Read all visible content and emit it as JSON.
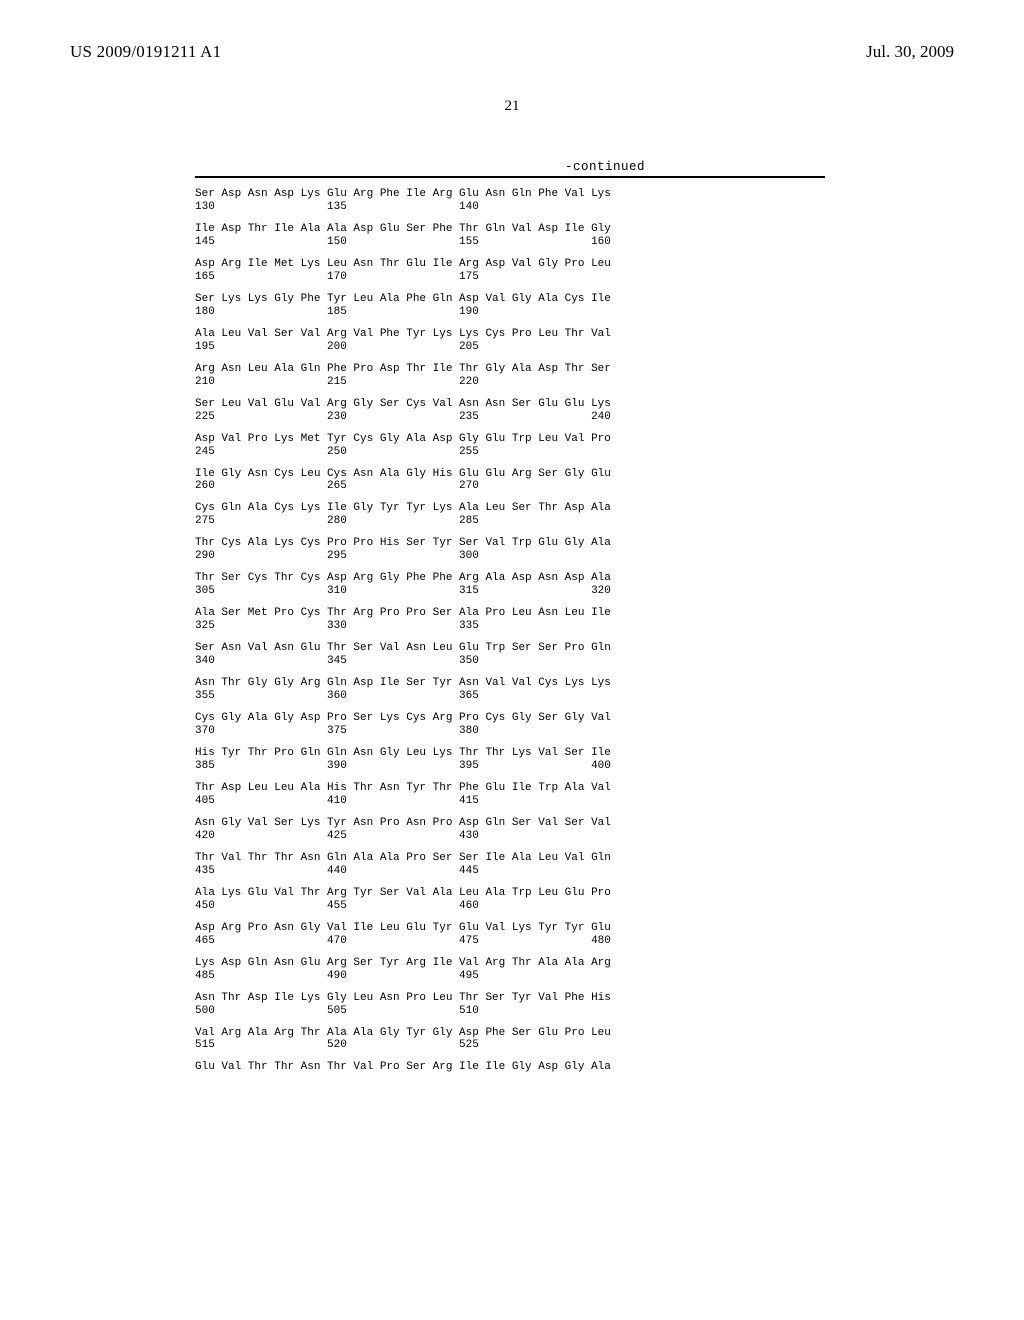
{
  "header": {
    "left": "US 2009/0191211 A1",
    "right": "Jul. 30, 2009"
  },
  "page_number": "21",
  "continued_label": "-continued",
  "sequence": {
    "start": 130,
    "groups": [
      [
        "Ser",
        "Asp",
        "Asn",
        "Asp",
        "Lys",
        "Glu",
        "Arg",
        "Phe",
        "Ile",
        "Arg",
        "Glu",
        "Asn",
        "Gln",
        "Phe",
        "Val",
        "Lys"
      ],
      [
        "Ile",
        "Asp",
        "Thr",
        "Ile",
        "Ala",
        "Ala",
        "Asp",
        "Glu",
        "Ser",
        "Phe",
        "Thr",
        "Gln",
        "Val",
        "Asp",
        "Ile",
        "Gly"
      ],
      [
        "Asp",
        "Arg",
        "Ile",
        "Met",
        "Lys",
        "Leu",
        "Asn",
        "Thr",
        "Glu",
        "Ile",
        "Arg",
        "Asp",
        "Val",
        "Gly",
        "Pro",
        "Leu"
      ],
      [
        "Ser",
        "Lys",
        "Lys",
        "Gly",
        "Phe",
        "Tyr",
        "Leu",
        "Ala",
        "Phe",
        "Gln",
        "Asp",
        "Val",
        "Gly",
        "Ala",
        "Cys",
        "Ile"
      ],
      [
        "Ala",
        "Leu",
        "Val",
        "Ser",
        "Val",
        "Arg",
        "Val",
        "Phe",
        "Tyr",
        "Lys",
        "Lys",
        "Cys",
        "Pro",
        "Leu",
        "Thr",
        "Val"
      ],
      [
        "Arg",
        "Asn",
        "Leu",
        "Ala",
        "Gln",
        "Phe",
        "Pro",
        "Asp",
        "Thr",
        "Ile",
        "Thr",
        "Gly",
        "Ala",
        "Asp",
        "Thr",
        "Ser"
      ],
      [
        "Ser",
        "Leu",
        "Val",
        "Glu",
        "Val",
        "Arg",
        "Gly",
        "Ser",
        "Cys",
        "Val",
        "Asn",
        "Asn",
        "Ser",
        "Glu",
        "Glu",
        "Lys"
      ],
      [
        "Asp",
        "Val",
        "Pro",
        "Lys",
        "Met",
        "Tyr",
        "Cys",
        "Gly",
        "Ala",
        "Asp",
        "Gly",
        "Glu",
        "Trp",
        "Leu",
        "Val",
        "Pro"
      ],
      [
        "Ile",
        "Gly",
        "Asn",
        "Cys",
        "Leu",
        "Cys",
        "Asn",
        "Ala",
        "Gly",
        "His",
        "Glu",
        "Glu",
        "Arg",
        "Ser",
        "Gly",
        "Glu"
      ],
      [
        "Cys",
        "Gln",
        "Ala",
        "Cys",
        "Lys",
        "Ile",
        "Gly",
        "Tyr",
        "Tyr",
        "Lys",
        "Ala",
        "Leu",
        "Ser",
        "Thr",
        "Asp",
        "Ala"
      ],
      [
        "Thr",
        "Cys",
        "Ala",
        "Lys",
        "Cys",
        "Pro",
        "Pro",
        "His",
        "Ser",
        "Tyr",
        "Ser",
        "Val",
        "Trp",
        "Glu",
        "Gly",
        "Ala"
      ],
      [
        "Thr",
        "Ser",
        "Cys",
        "Thr",
        "Cys",
        "Asp",
        "Arg",
        "Gly",
        "Phe",
        "Phe",
        "Arg",
        "Ala",
        "Asp",
        "Asn",
        "Asp",
        "Ala"
      ],
      [
        "Ala",
        "Ser",
        "Met",
        "Pro",
        "Cys",
        "Thr",
        "Arg",
        "Pro",
        "Pro",
        "Ser",
        "Ala",
        "Pro",
        "Leu",
        "Asn",
        "Leu",
        "Ile"
      ],
      [
        "Ser",
        "Asn",
        "Val",
        "Asn",
        "Glu",
        "Thr",
        "Ser",
        "Val",
        "Asn",
        "Leu",
        "Glu",
        "Trp",
        "Ser",
        "Ser",
        "Pro",
        "Gln"
      ],
      [
        "Asn",
        "Thr",
        "Gly",
        "Gly",
        "Arg",
        "Gln",
        "Asp",
        "Ile",
        "Ser",
        "Tyr",
        "Asn",
        "Val",
        "Val",
        "Cys",
        "Lys",
        "Lys"
      ],
      [
        "Cys",
        "Gly",
        "Ala",
        "Gly",
        "Asp",
        "Pro",
        "Ser",
        "Lys",
        "Cys",
        "Arg",
        "Pro",
        "Cys",
        "Gly",
        "Ser",
        "Gly",
        "Val"
      ],
      [
        "His",
        "Tyr",
        "Thr",
        "Pro",
        "Gln",
        "Gln",
        "Asn",
        "Gly",
        "Leu",
        "Lys",
        "Thr",
        "Thr",
        "Lys",
        "Val",
        "Ser",
        "Ile"
      ],
      [
        "Thr",
        "Asp",
        "Leu",
        "Leu",
        "Ala",
        "His",
        "Thr",
        "Asn",
        "Tyr",
        "Thr",
        "Phe",
        "Glu",
        "Ile",
        "Trp",
        "Ala",
        "Val"
      ],
      [
        "Asn",
        "Gly",
        "Val",
        "Ser",
        "Lys",
        "Tyr",
        "Asn",
        "Pro",
        "Asn",
        "Pro",
        "Asp",
        "Gln",
        "Ser",
        "Val",
        "Ser",
        "Val"
      ],
      [
        "Thr",
        "Val",
        "Thr",
        "Thr",
        "Asn",
        "Gln",
        "Ala",
        "Ala",
        "Pro",
        "Ser",
        "Ser",
        "Ile",
        "Ala",
        "Leu",
        "Val",
        "Gln"
      ],
      [
        "Ala",
        "Lys",
        "Glu",
        "Val",
        "Thr",
        "Arg",
        "Tyr",
        "Ser",
        "Val",
        "Ala",
        "Leu",
        "Ala",
        "Trp",
        "Leu",
        "Glu",
        "Pro"
      ],
      [
        "Asp",
        "Arg",
        "Pro",
        "Asn",
        "Gly",
        "Val",
        "Ile",
        "Leu",
        "Glu",
        "Tyr",
        "Glu",
        "Val",
        "Lys",
        "Tyr",
        "Tyr",
        "Glu"
      ],
      [
        "Lys",
        "Asp",
        "Gln",
        "Asn",
        "Glu",
        "Arg",
        "Ser",
        "Tyr",
        "Arg",
        "Ile",
        "Val",
        "Arg",
        "Thr",
        "Ala",
        "Ala",
        "Arg"
      ],
      [
        "Asn",
        "Thr",
        "Asp",
        "Ile",
        "Lys",
        "Gly",
        "Leu",
        "Asn",
        "Pro",
        "Leu",
        "Thr",
        "Ser",
        "Tyr",
        "Val",
        "Phe",
        "His"
      ],
      [
        "Val",
        "Arg",
        "Ala",
        "Arg",
        "Thr",
        "Ala",
        "Ala",
        "Gly",
        "Tyr",
        "Gly",
        "Asp",
        "Phe",
        "Ser",
        "Glu",
        "Pro",
        "Leu"
      ],
      [
        "Glu",
        "Val",
        "Thr",
        "Thr",
        "Asn",
        "Thr",
        "Val",
        "Pro",
        "Ser",
        "Arg",
        "Ile",
        "Ile",
        "Gly",
        "Asp",
        "Gly",
        "Ala"
      ]
    ]
  },
  "style": {
    "mono_font_size": 11,
    "col_width_chars": 4
  }
}
